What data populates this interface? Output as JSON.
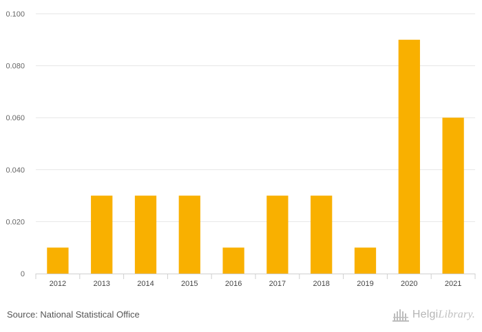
{
  "chart_data": {
    "type": "bar",
    "title": "",
    "xlabel": "",
    "ylabel": "",
    "categories": [
      "2012",
      "2013",
      "2014",
      "2015",
      "2016",
      "2017",
      "2018",
      "2019",
      "2020",
      "2021"
    ],
    "values": [
      0.01,
      0.03,
      0.03,
      0.03,
      0.01,
      0.03,
      0.03,
      0.01,
      0.09,
      0.06
    ],
    "ylim": [
      0,
      0.1
    ],
    "yticks": [
      0,
      0.02,
      0.04,
      0.06,
      0.08,
      0.1
    ],
    "ytick_labels": [
      "0",
      "0.020",
      "0.040",
      "0.060",
      "0.080",
      "0.100"
    ],
    "grid": true,
    "bar_color": "#f9b000"
  },
  "footer": {
    "source": "Source: National Statistical Office",
    "brand_main": "Helgi",
    "brand_light": "Library."
  }
}
